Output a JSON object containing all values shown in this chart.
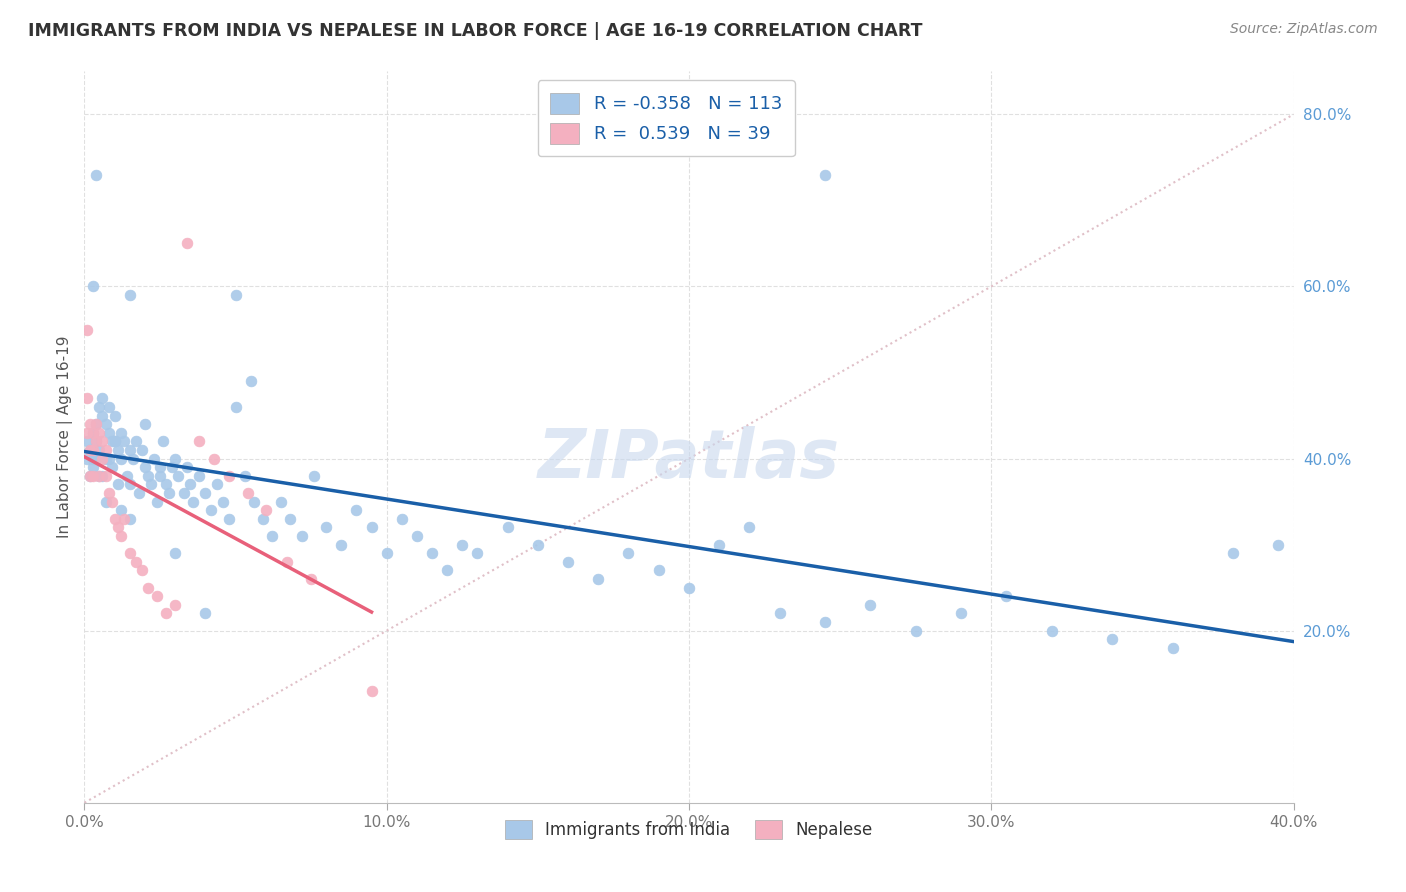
{
  "title": "IMMIGRANTS FROM INDIA VS NEPALESE IN LABOR FORCE | AGE 16-19 CORRELATION CHART",
  "source": "Source: ZipAtlas.com",
  "ylabel": "In Labor Force | Age 16-19",
  "xlim": [
    0.0,
    0.4
  ],
  "ylim": [
    0.0,
    0.85
  ],
  "xtick_vals": [
    0.0,
    0.1,
    0.2,
    0.3,
    0.4
  ],
  "xtick_labels": [
    "0.0%",
    "10.0%",
    "20.0%",
    "30.0%",
    "40.0%"
  ],
  "ytick_vals": [
    0.2,
    0.4,
    0.6,
    0.8
  ],
  "ytick_labels": [
    "20.0%",
    "40.0%",
    "60.0%",
    "80.0%"
  ],
  "india_R": -0.358,
  "india_N": 113,
  "nepal_R": 0.539,
  "nepal_N": 39,
  "india_color": "#a8c8e8",
  "india_line_color": "#1a5fa8",
  "nepal_color": "#f4b0c0",
  "nepal_line_color": "#e8607a",
  "diagonal_color": "#e0c0c8",
  "diagonal_linestyle": "dotted",
  "watermark": "ZIPatlas",
  "watermark_color": "#c8d8ee",
  "title_color": "#333333",
  "source_color": "#888888",
  "ylabel_color": "#555555",
  "xtick_color": "#777777",
  "ytick_color": "#5b9bd5",
  "grid_color": "#dddddd",
  "legend_label_color": "#1a5fa8",
  "india_x": [
    0.001,
    0.001,
    0.002,
    0.002,
    0.003,
    0.003,
    0.003,
    0.004,
    0.004,
    0.004,
    0.005,
    0.005,
    0.005,
    0.006,
    0.006,
    0.007,
    0.007,
    0.008,
    0.008,
    0.009,
    0.009,
    0.01,
    0.01,
    0.011,
    0.011,
    0.012,
    0.012,
    0.013,
    0.014,
    0.015,
    0.015,
    0.016,
    0.017,
    0.018,
    0.019,
    0.02,
    0.021,
    0.022,
    0.023,
    0.024,
    0.025,
    0.026,
    0.027,
    0.028,
    0.029,
    0.03,
    0.031,
    0.033,
    0.034,
    0.035,
    0.036,
    0.038,
    0.04,
    0.042,
    0.044,
    0.046,
    0.048,
    0.05,
    0.053,
    0.056,
    0.059,
    0.062,
    0.065,
    0.068,
    0.072,
    0.076,
    0.08,
    0.085,
    0.09,
    0.095,
    0.1,
    0.105,
    0.11,
    0.115,
    0.12,
    0.125,
    0.13,
    0.14,
    0.15,
    0.16,
    0.17,
    0.18,
    0.19,
    0.2,
    0.21,
    0.22,
    0.23,
    0.245,
    0.26,
    0.275,
    0.29,
    0.305,
    0.32,
    0.34,
    0.36,
    0.38,
    0.395,
    0.003,
    0.004,
    0.006,
    0.007,
    0.008,
    0.01,
    0.012,
    0.015,
    0.02,
    0.025,
    0.03,
    0.04,
    0.055,
    0.015,
    0.245,
    0.05
  ],
  "india_y": [
    0.42,
    0.4,
    0.41,
    0.38,
    0.43,
    0.4,
    0.39,
    0.44,
    0.42,
    0.4,
    0.46,
    0.41,
    0.38,
    0.45,
    0.38,
    0.44,
    0.4,
    0.43,
    0.4,
    0.42,
    0.39,
    0.45,
    0.42,
    0.41,
    0.37,
    0.43,
    0.4,
    0.42,
    0.38,
    0.41,
    0.37,
    0.4,
    0.42,
    0.36,
    0.41,
    0.39,
    0.38,
    0.37,
    0.4,
    0.35,
    0.38,
    0.42,
    0.37,
    0.36,
    0.39,
    0.4,
    0.38,
    0.36,
    0.39,
    0.37,
    0.35,
    0.38,
    0.36,
    0.34,
    0.37,
    0.35,
    0.33,
    0.46,
    0.38,
    0.35,
    0.33,
    0.31,
    0.35,
    0.33,
    0.31,
    0.38,
    0.32,
    0.3,
    0.34,
    0.32,
    0.29,
    0.33,
    0.31,
    0.29,
    0.27,
    0.3,
    0.29,
    0.32,
    0.3,
    0.28,
    0.26,
    0.29,
    0.27,
    0.25,
    0.3,
    0.32,
    0.22,
    0.21,
    0.23,
    0.2,
    0.22,
    0.24,
    0.2,
    0.19,
    0.18,
    0.29,
    0.3,
    0.6,
    0.73,
    0.47,
    0.35,
    0.46,
    0.42,
    0.34,
    0.33,
    0.44,
    0.39,
    0.29,
    0.22,
    0.49,
    0.59,
    0.73,
    0.59
  ],
  "nepal_x": [
    0.001,
    0.001,
    0.001,
    0.002,
    0.002,
    0.002,
    0.003,
    0.003,
    0.003,
    0.004,
    0.004,
    0.005,
    0.005,
    0.006,
    0.006,
    0.007,
    0.007,
    0.008,
    0.009,
    0.01,
    0.011,
    0.012,
    0.013,
    0.015,
    0.017,
    0.019,
    0.021,
    0.024,
    0.027,
    0.03,
    0.034,
    0.038,
    0.043,
    0.048,
    0.054,
    0.06,
    0.067,
    0.075,
    0.095
  ],
  "nepal_y": [
    0.55,
    0.47,
    0.43,
    0.44,
    0.41,
    0.38,
    0.43,
    0.41,
    0.38,
    0.44,
    0.42,
    0.43,
    0.38,
    0.42,
    0.4,
    0.41,
    0.38,
    0.36,
    0.35,
    0.33,
    0.32,
    0.31,
    0.33,
    0.29,
    0.28,
    0.27,
    0.25,
    0.24,
    0.22,
    0.23,
    0.65,
    0.42,
    0.4,
    0.38,
    0.36,
    0.34,
    0.28,
    0.26,
    0.13
  ]
}
